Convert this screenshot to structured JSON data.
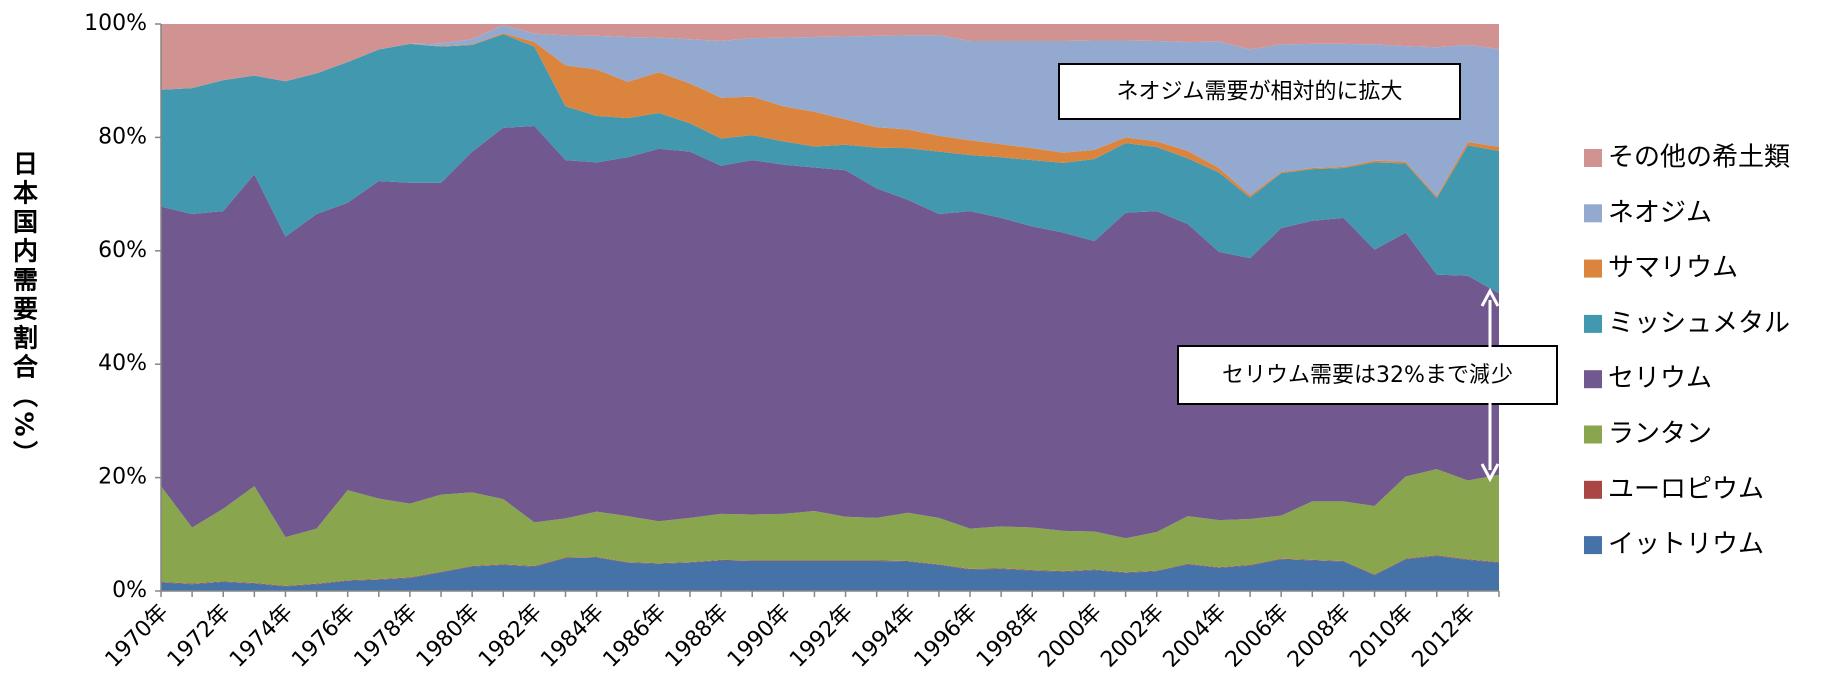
{
  "chart_data": {
    "type": "stacked_area",
    "y_axis_label": "日本国内需要割合（%）",
    "annotations": [
      "ネオジム需要が相対的に拡大",
      "セリウム需要は32%まで減少"
    ],
    "categories": [
      "1970年",
      null,
      "1972年",
      null,
      "1974年",
      null,
      "1976年",
      null,
      "1978年",
      null,
      "1980年",
      null,
      "1982年",
      null,
      "1984年",
      null,
      "1986年",
      null,
      "1988年",
      null,
      "1990年",
      null,
      "1992年",
      null,
      "1994年",
      null,
      "1996年",
      null,
      "1998年",
      null,
      "2000年",
      null,
      "2002年",
      null,
      "2004年",
      null,
      "2006年",
      null,
      "2008年",
      null,
      "2010年",
      null,
      "2012年",
      null
    ],
    "ylim": [
      0,
      100
    ],
    "yticks": [
      {
        "value": 0,
        "label": "0%"
      },
      {
        "value": 20,
        "label": "20%"
      },
      {
        "value": 40,
        "label": "40%"
      },
      {
        "value": 60,
        "label": "60%"
      },
      {
        "value": 80,
        "label": "80%"
      },
      {
        "value": 100,
        "label": "100%"
      }
    ],
    "legend": "right",
    "series": [
      {
        "name": "イットリウム",
        "color": "#4572a7",
        "values": [
          1.5,
          1.2,
          1.6,
          1.3,
          0.8,
          1.2,
          1.8,
          2.0,
          2.3,
          3.3,
          4.3,
          4.6,
          4.3,
          5.8,
          5.9,
          5.0,
          4.8,
          5.0,
          5.4,
          5.3,
          5.3,
          5.3,
          5.3,
          5.3,
          5.2,
          4.6,
          3.8,
          3.9,
          3.6,
          3.4,
          3.7,
          3.2,
          3.5,
          4.7,
          4.1,
          4.5,
          5.6,
          5.4,
          5.2,
          2.8,
          5.6,
          6.2,
          5.5,
          5.0
        ]
      },
      {
        "name": "ユーロピウム",
        "color": "#aa4643",
        "values": [
          0.1,
          0.1,
          0.1,
          0.1,
          0.1,
          0.1,
          0.1,
          0.1,
          0.1,
          0.1,
          0.1,
          0.1,
          0.1,
          0.1,
          0.1,
          0.1,
          0.1,
          0.1,
          0.1,
          0.1,
          0.1,
          0.1,
          0.1,
          0.1,
          0.1,
          0.1,
          0.1,
          0.1,
          0.1,
          0.1,
          0.1,
          0.1,
          0.1,
          0.1,
          0.1,
          0.1,
          0.1,
          0.1,
          0.1,
          0.1,
          0.1,
          0.1,
          0.1,
          0.1
        ]
      },
      {
        "name": "ランタン",
        "color": "#89a54e",
        "values": [
          16.9,
          9.9,
          12.8,
          17.1,
          8.6,
          9.7,
          15.9,
          14.2,
          13.0,
          13.6,
          13.0,
          11.5,
          7.7,
          6.9,
          8.0,
          8.1,
          7.4,
          7.8,
          8.1,
          8.1,
          8.2,
          8.7,
          7.7,
          7.5,
          8.5,
          8.2,
          7.1,
          7.4,
          7.5,
          7.1,
          6.7,
          6.0,
          6.8,
          8.4,
          8.3,
          8.1,
          7.6,
          10.3,
          10.5,
          12.1,
          14.5,
          15.2,
          13.9,
          15.4
        ]
      },
      {
        "name": "セリウム",
        "color": "#71588f",
        "values": [
          49.3,
          55.3,
          52.5,
          55.0,
          53.0,
          55.5,
          50.7,
          56.0,
          56.6,
          55.0,
          60.1,
          65.5,
          69.9,
          63.2,
          61.6,
          63.3,
          65.7,
          64.6,
          61.4,
          62.5,
          61.6,
          60.6,
          61.1,
          58.1,
          55.2,
          53.6,
          56.0,
          54.4,
          53.1,
          52.6,
          51.2,
          57.4,
          56.6,
          51.5,
          47.3,
          46.0,
          50.7,
          49.5,
          50.0,
          45.2,
          43.0,
          34.3,
          36.1,
          32.0
        ]
      },
      {
        "name": "ミッシュメタル",
        "color": "#4198af",
        "values": [
          20.6,
          22.2,
          23.1,
          17.4,
          27.4,
          24.8,
          24.8,
          23.2,
          24.5,
          24.0,
          18.8,
          16.5,
          14.0,
          9.5,
          8.2,
          6.9,
          6.3,
          5.0,
          4.8,
          4.4,
          4.1,
          3.7,
          4.5,
          7.2,
          9.1,
          11.0,
          9.9,
          10.7,
          11.7,
          12.3,
          14.5,
          12.3,
          11.3,
          11.6,
          14.0,
          10.7,
          9.7,
          9.1,
          8.8,
          15.4,
          12.2,
          13.5,
          23.0,
          25.1
        ]
      },
      {
        "name": "サマリウム",
        "color": "#db843d",
        "values": [
          0,
          0,
          0,
          0,
          0,
          0,
          0,
          0,
          0,
          0.1,
          0.1,
          0.2,
          0.8,
          7.2,
          8.2,
          6.4,
          7.2,
          7.0,
          7.2,
          6.8,
          6.2,
          6.1,
          4.5,
          3.6,
          3.3,
          2.8,
          2.6,
          2.3,
          2.1,
          1.8,
          1.6,
          1.0,
          1.0,
          1.3,
          0.8,
          0.4,
          0.2,
          0.2,
          0.2,
          0.3,
          0.3,
          0.3,
          0.6,
          0.7
        ]
      },
      {
        "name": "ネオジム",
        "color": "#93a9cf",
        "values": [
          0,
          0,
          0,
          0,
          0,
          0,
          0,
          0,
          0,
          0.5,
          0.9,
          1.4,
          1.5,
          5.3,
          5.9,
          7.9,
          6.1,
          7.8,
          10.0,
          10.3,
          12.1,
          13.2,
          14.6,
          16.1,
          16.6,
          17.7,
          17.5,
          18.2,
          18.9,
          19.7,
          19.3,
          17.1,
          17.7,
          19.2,
          22.3,
          25.7,
          22.5,
          21.9,
          21.7,
          20.5,
          20.4,
          26.3,
          17.1,
          17.3
        ]
      },
      {
        "name": "その他の希土類",
        "color": "#d19392",
        "values": [
          11.6,
          11.3,
          9.9,
          9.1,
          10.1,
          8.7,
          6.7,
          4.5,
          3.5,
          3.4,
          2.7,
          0.2,
          1.7,
          2.0,
          2.1,
          2.3,
          2.4,
          2.7,
          3.0,
          2.5,
          2.4,
          2.3,
          2.2,
          2.1,
          2.0,
          2.0,
          3.0,
          3.0,
          3.0,
          3.0,
          2.9,
          2.9,
          3.0,
          3.2,
          3.1,
          4.5,
          3.6,
          3.5,
          3.5,
          3.6,
          3.9,
          4.1,
          3.7,
          4.4
        ]
      }
    ]
  }
}
